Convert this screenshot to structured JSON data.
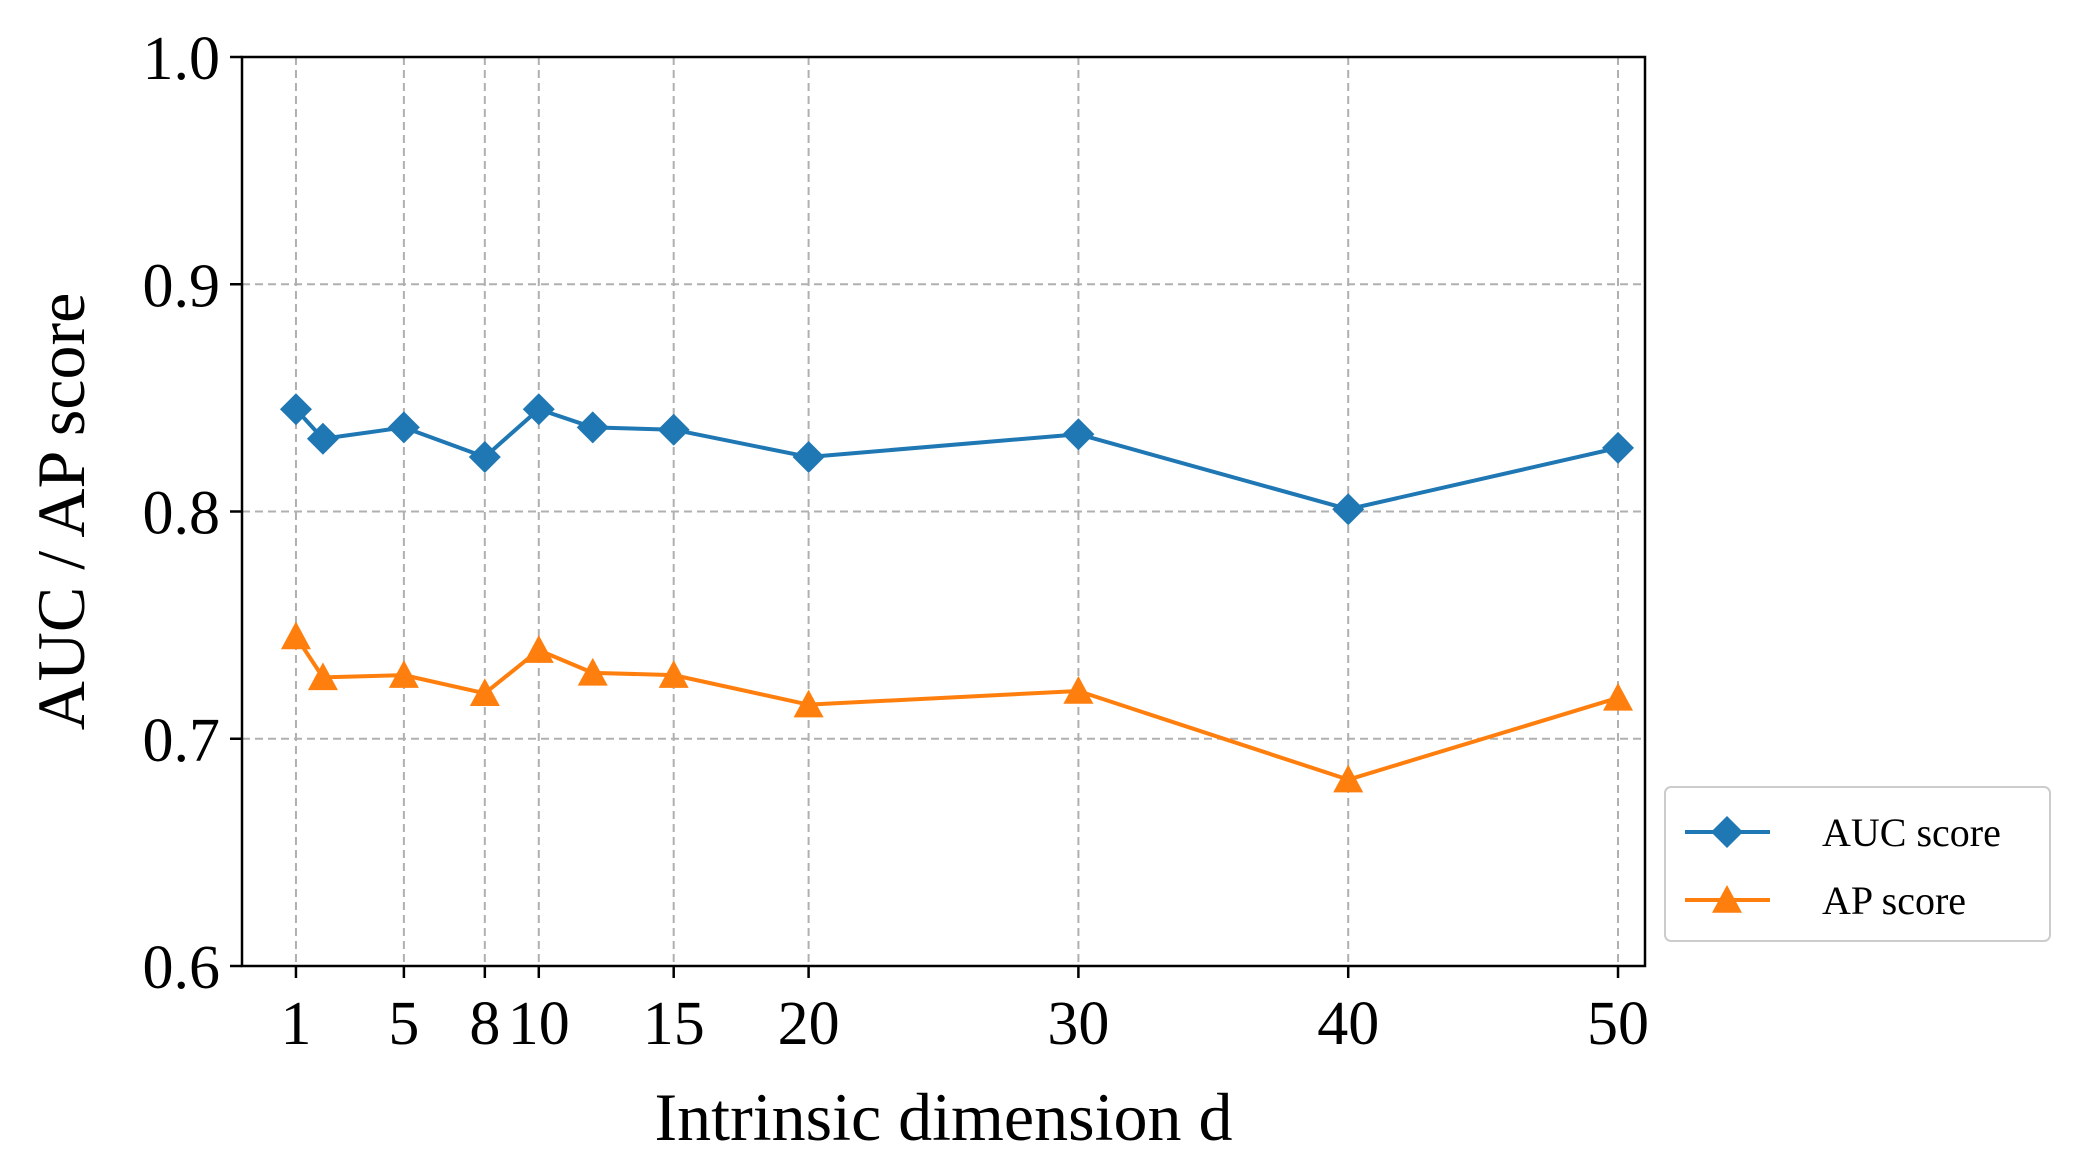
{
  "chart_data": {
    "type": "line",
    "title": "",
    "xlabel": "Intrinsic dimension d",
    "ylabel": "AUC / AP score",
    "xlim": [
      -1,
      51
    ],
    "ylim": [
      0.6,
      1.0
    ],
    "x": [
      1,
      2,
      5,
      8,
      10,
      12,
      15,
      20,
      30,
      40,
      50
    ],
    "xticks": [
      1,
      5,
      8,
      10,
      15,
      20,
      30,
      40,
      50
    ],
    "xtick_labels": [
      "1",
      "5",
      "8",
      "10",
      "15",
      "20",
      "30",
      "40",
      "50"
    ],
    "yticks": [
      0.6,
      0.7,
      0.8,
      0.9,
      1.0
    ],
    "ytick_labels": [
      "0.6",
      "0.7",
      "0.8",
      "0.9",
      "1.0"
    ],
    "grid": true,
    "legend_position": "outside-right-bottom",
    "series": [
      {
        "name": "AUC score",
        "color": "#1f77b4",
        "marker": "diamond",
        "values": [
          0.845,
          0.832,
          0.837,
          0.824,
          0.845,
          0.837,
          0.836,
          0.824,
          0.834,
          0.801,
          0.828
        ]
      },
      {
        "name": "AP score",
        "color": "#ff7f0e",
        "marker": "triangle",
        "values": [
          0.745,
          0.727,
          0.728,
          0.72,
          0.739,
          0.729,
          0.728,
          0.715,
          0.721,
          0.682,
          0.718
        ]
      }
    ]
  }
}
